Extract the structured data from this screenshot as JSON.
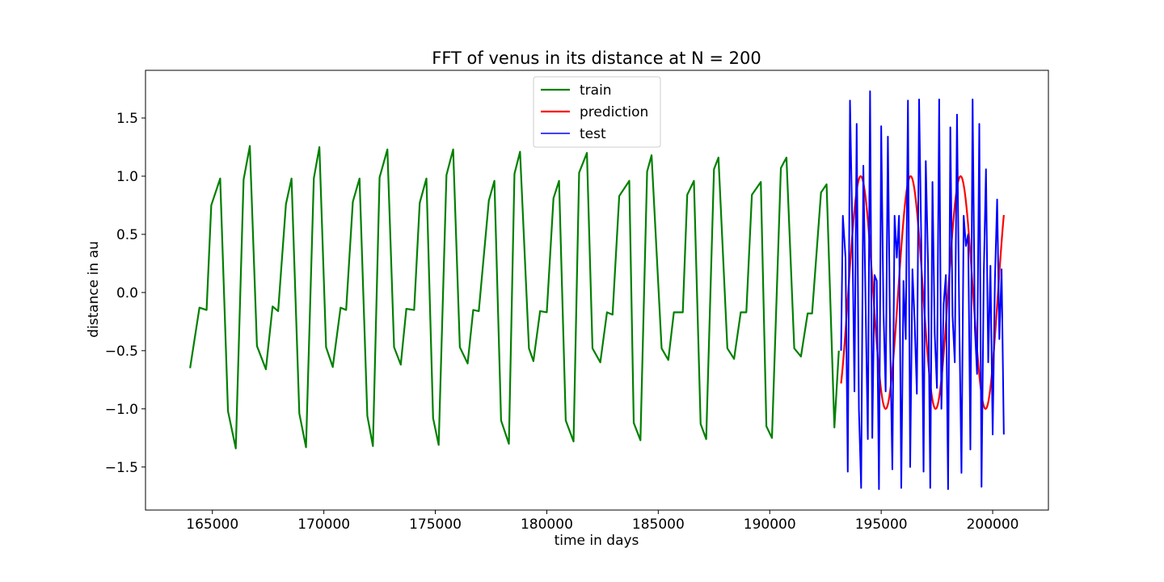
{
  "chart_data": {
    "type": "line",
    "title": "FFT of venus in its distance at N = 200",
    "xlabel": "time in days",
    "ylabel": "distance in au",
    "xlim": [
      162000,
      202500
    ],
    "ylim": [
      -1.87,
      1.91
    ],
    "xticks": [
      165000,
      170000,
      175000,
      180000,
      185000,
      190000,
      195000,
      200000
    ],
    "xtick_labels": [
      "165000",
      "170000",
      "175000",
      "180000",
      "185000",
      "190000",
      "195000",
      "200000"
    ],
    "yticks": [
      1.5,
      1.0,
      0.5,
      0.0,
      -0.5,
      -1.0,
      -1.5
    ],
    "ytick_labels": [
      "1.5",
      "1.0",
      "0.5",
      "0.0",
      "−0.5",
      "−1.0",
      "−1.5"
    ],
    "grid": false,
    "legend_position": "top-center",
    "series": [
      {
        "name": "train",
        "color": "#008000",
        "x": [
          164000,
          164420,
          164740,
          164950,
          165350,
          165700,
          166050,
          166400,
          166680,
          167000,
          167400,
          167700,
          167950,
          168300,
          168550,
          168900,
          169200,
          169550,
          169800,
          170100,
          170400,
          170750,
          171000,
          171300,
          171600,
          171950,
          172200,
          172500,
          172850,
          173150,
          173450,
          173700,
          174050,
          174300,
          174600,
          174900,
          175150,
          175500,
          175800,
          176100,
          176450,
          176700,
          176950,
          177400,
          177650,
          177950,
          178300,
          178550,
          178800,
          179200,
          179400,
          179700,
          180000,
          180300,
          180550,
          180850,
          181200,
          181450,
          181800,
          182050,
          182400,
          182700,
          182950,
          183250,
          183700,
          183900,
          184200,
          184500,
          184700,
          185150,
          185450,
          185700,
          186100,
          186300,
          186600,
          186900,
          187150,
          187500,
          187700,
          188100,
          188400,
          188700,
          188950,
          189200,
          189600,
          189850,
          190100,
          190500,
          190750,
          191100,
          191400,
          191700,
          191900,
          192300,
          192550,
          192900,
          193100
        ],
        "y": [
          -0.65,
          -0.13,
          -0.15,
          0.75,
          0.98,
          -1.02,
          -1.34,
          0.97,
          1.26,
          -0.46,
          -0.66,
          -0.12,
          -0.16,
          0.76,
          0.98,
          -1.04,
          -1.33,
          0.98,
          1.25,
          -0.47,
          -0.64,
          -0.13,
          -0.15,
          0.78,
          0.98,
          -1.06,
          -1.32,
          0.99,
          1.23,
          -0.47,
          -0.62,
          -0.14,
          -0.15,
          0.77,
          0.98,
          -1.08,
          -1.31,
          1.01,
          1.23,
          -0.47,
          -0.61,
          -0.15,
          -0.16,
          0.79,
          0.96,
          -1.1,
          -1.3,
          1.02,
          1.21,
          -0.48,
          -0.59,
          -0.16,
          -0.17,
          0.81,
          0.96,
          -1.1,
          -1.28,
          1.03,
          1.2,
          -0.48,
          -0.6,
          -0.17,
          -0.19,
          0.83,
          0.96,
          -1.12,
          -1.27,
          1.04,
          1.18,
          -0.48,
          -0.58,
          -0.17,
          -0.17,
          0.84,
          0.96,
          -1.13,
          -1.26,
          1.06,
          1.16,
          -0.48,
          -0.57,
          -0.17,
          -0.17,
          0.84,
          0.95,
          -1.15,
          -1.25,
          1.07,
          1.16,
          -0.48,
          -0.55,
          -0.18,
          -0.18,
          0.86,
          0.93,
          -1.16,
          -0.5
        ]
      },
      {
        "name": "prediction",
        "color": "#ff0000",
        "x_start": 193200,
        "x_end": 200500,
        "amplitude": 1.0,
        "period_days": 2240,
        "peak_x": 194080
      },
      {
        "name": "test",
        "color": "#0000ff",
        "x": [
          193200,
          193280,
          193400,
          193500,
          193600,
          193700,
          193800,
          193900,
          194000,
          194100,
          194200,
          194300,
          194400,
          194500,
          194600,
          194700,
          194800,
          194900,
          195000,
          195100,
          195200,
          195300,
          195400,
          195500,
          195600,
          195700,
          195800,
          195900,
          196000,
          196100,
          196200,
          196300,
          196400,
          196500,
          196600,
          196700,
          196800,
          196900,
          197000,
          197100,
          197200,
          197300,
          197400,
          197500,
          197600,
          197700,
          197800,
          197900,
          198000,
          198100,
          198200,
          198300,
          198400,
          198500,
          198600,
          198700,
          198800,
          198900,
          199000,
          199100,
          199200,
          199300,
          199400,
          199500,
          199600,
          199700,
          199800,
          199900,
          200000,
          200100,
          200200,
          200300,
          200400,
          200500
        ],
        "y": [
          -0.5,
          0.66,
          0.3,
          -1.54,
          1.65,
          0.6,
          -0.85,
          1.45,
          -1.0,
          -1.68,
          1.09,
          -0.1,
          -1.26,
          1.73,
          -1.25,
          0.15,
          0.1,
          -1.69,
          1.43,
          -0.15,
          -0.85,
          1.34,
          -0.4,
          -1.52,
          0.66,
          0.3,
          0.66,
          -1.68,
          0.1,
          -0.4,
          1.65,
          -1.5,
          0.2,
          -0.25,
          -0.87,
          1.66,
          0.4,
          -1.54,
          1.13,
          0.25,
          -1.68,
          0.95,
          -0.35,
          -0.82,
          1.66,
          -1.0,
          -0.1,
          0.15,
          -1.69,
          1.42,
          -0.2,
          -0.6,
          1.53,
          -0.2,
          -1.55,
          0.66,
          0.4,
          0.5,
          -1.35,
          1.66,
          -0.3,
          -0.7,
          1.45,
          -1.67,
          0.15,
          1.06,
          -0.6,
          0.23,
          -1.22,
          0.1,
          0.8,
          -0.4,
          0.2,
          -1.22
        ]
      }
    ]
  }
}
